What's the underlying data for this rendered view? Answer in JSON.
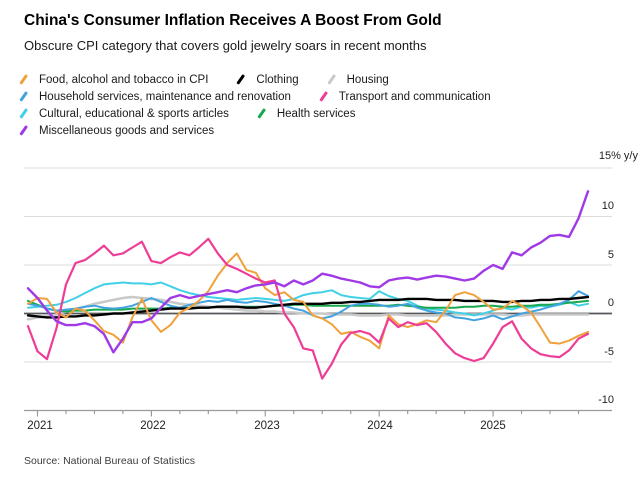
{
  "header": {
    "title": "China's Consumer Inflation Receives A Boost From Gold",
    "subtitle": "Obscure CPI category that covers gold jewelry soars in recent months"
  },
  "legend": {
    "items": [
      {
        "label": "Food, alcohol and tobacco in CPI",
        "color": "#F0A13C"
      },
      {
        "label": "Clothing",
        "color": "#000000"
      },
      {
        "label": "Housing",
        "color": "#C9C9C9"
      },
      {
        "label": "Household services, maintenance and renovation",
        "color": "#42A3E0"
      },
      {
        "label": "Transport and communication",
        "color": "#EE3D96"
      },
      {
        "label": "Cultural, educational & sports articles",
        "color": "#41D0E6"
      },
      {
        "label": "Health services",
        "color": "#18A84F"
      },
      {
        "label": "Miscellaneous goods and services",
        "color": "#A03AE6"
      }
    ]
  },
  "axis": {
    "y_top_label": "15% y/y",
    "y_ticks": [
      {
        "label": "10",
        "value": 10
      },
      {
        "label": "5",
        "value": 5
      },
      {
        "label": "0",
        "value": 0
      },
      {
        "label": "-5",
        "value": -5
      },
      {
        "label": "-10",
        "value": -10
      }
    ],
    "x_ticks": [
      {
        "label": "2021"
      },
      {
        "label": "2022"
      },
      {
        "label": "2023"
      },
      {
        "label": "2024"
      },
      {
        "label": "2025"
      }
    ]
  },
  "source": "Source: National Bureau of Statistics",
  "chart_data": {
    "type": "line",
    "frequency": "monthly",
    "x_start": "2020-12",
    "x_end": "2025-11",
    "n_points": 60,
    "ylabel": "% y/y",
    "ylim": [
      -10,
      15
    ],
    "grid": "horizontal",
    "legend_position": "top-left",
    "series": [
      {
        "name": "Food, alcohol and tobacco in CPI",
        "color": "#F0A13C",
        "values": [
          1.0,
          1.6,
          1.5,
          0.1,
          -0.4,
          0.5,
          0.3,
          -0.7,
          -1.8,
          -2.2,
          -3.0,
          -0.4,
          1.5,
          -0.7,
          -1.9,
          -1.2,
          0.1,
          0.6,
          1.3,
          2.3,
          3.9,
          5.2,
          6.2,
          4.5,
          4.2,
          2.6,
          1.9,
          2.2,
          1.4,
          1.2,
          -0.2,
          -0.5,
          -1.1,
          -2.1,
          -1.9,
          -2.4,
          -2.8,
          -3.6,
          -0.2,
          -1.1,
          -1.4,
          -1.1,
          -0.7,
          -0.9,
          0.3,
          1.9,
          2.2,
          1.9,
          1.2,
          0.4,
          0.5,
          1.3,
          0.8,
          0.1,
          -1.4,
          -3.0,
          -3.1,
          -2.8,
          -2.3,
          -1.9
        ]
      },
      {
        "name": "Clothing",
        "color": "#000000",
        "values": [
          -0.2,
          -0.3,
          -0.4,
          -0.4,
          -0.3,
          -0.3,
          -0.2,
          -0.2,
          -0.1,
          0.0,
          0.0,
          0.1,
          0.2,
          0.3,
          0.4,
          0.5,
          0.5,
          0.5,
          0.6,
          0.6,
          0.7,
          0.7,
          0.7,
          0.6,
          0.6,
          0.7,
          0.8,
          0.9,
          1.0,
          1.0,
          1.0,
          1.0,
          1.1,
          1.1,
          1.2,
          1.2,
          1.3,
          1.4,
          1.4,
          1.4,
          1.5,
          1.5,
          1.5,
          1.4,
          1.4,
          1.4,
          1.3,
          1.3,
          1.3,
          1.3,
          1.2,
          1.2,
          1.3,
          1.3,
          1.4,
          1.4,
          1.5,
          1.5,
          1.6,
          1.7
        ]
      },
      {
        "name": "Housing",
        "color": "#C9C9C9",
        "values": [
          -0.6,
          -0.4,
          -0.3,
          -0.1,
          0.2,
          0.4,
          0.7,
          1.0,
          1.2,
          1.4,
          1.6,
          1.7,
          1.6,
          1.5,
          1.4,
          1.2,
          1.0,
          0.9,
          0.8,
          0.7,
          0.6,
          0.5,
          0.4,
          0.3,
          0.3,
          0.2,
          0.2,
          0.1,
          0.1,
          0.0,
          0.0,
          0.0,
          -0.1,
          -0.1,
          -0.1,
          -0.2,
          -0.2,
          -0.2,
          -0.1,
          -0.1,
          -0.2,
          -0.2,
          -0.2,
          -0.2,
          -0.2,
          -0.1,
          -0.1,
          -0.1,
          -0.1,
          -0.1,
          -0.1,
          -0.2,
          -0.2,
          -0.1,
          -0.1,
          -0.1,
          -0.1,
          -0.1,
          -0.1,
          -0.1
        ]
      },
      {
        "name": "Household services, maintenance and renovation",
        "color": "#42A3E0",
        "values": [
          1.0,
          0.8,
          0.5,
          0.3,
          0.4,
          0.5,
          0.7,
          0.8,
          0.6,
          0.5,
          0.6,
          0.8,
          1.2,
          1.6,
          1.2,
          0.8,
          0.6,
          0.9,
          1.1,
          1.3,
          1.2,
          1.4,
          1.2,
          1.1,
          1.3,
          1.2,
          1.0,
          0.8,
          0.5,
          0.3,
          -0.2,
          -0.5,
          -0.3,
          0.2,
          0.8,
          1.0,
          1.0,
          0.9,
          0.7,
          0.8,
          1.0,
          0.6,
          0.3,
          0.1,
          0.0,
          -0.4,
          -0.5,
          -0.7,
          -0.5,
          -0.2,
          -0.6,
          -0.3,
          0.0,
          0.2,
          0.4,
          0.7,
          1.0,
          1.4,
          2.3,
          1.8
        ]
      },
      {
        "name": "Transport and communication",
        "color": "#EE3D96",
        "values": [
          -1.3,
          -3.9,
          -4.7,
          -1.5,
          3.0,
          5.2,
          5.5,
          6.2,
          7.0,
          6.0,
          6.2,
          6.8,
          7.4,
          5.4,
          5.2,
          5.8,
          6.3,
          6.0,
          6.8,
          7.7,
          6.2,
          5.0,
          4.6,
          4.1,
          3.6,
          3.2,
          3.4,
          0.0,
          -1.4,
          -3.6,
          -3.8,
          -6.7,
          -5.2,
          -3.2,
          -2.0,
          -1.8,
          -2.1,
          -3.0,
          -0.5,
          -1.4,
          -0.9,
          -1.2,
          -1.0,
          -1.9,
          -3.1,
          -4.1,
          -4.6,
          -4.9,
          -4.6,
          -3.1,
          -1.4,
          -0.8,
          -2.6,
          -3.6,
          -4.2,
          -4.4,
          -4.5,
          -3.8,
          -2.6,
          -2.1
        ]
      },
      {
        "name": "Cultural, educational & sports articles",
        "color": "#41D0E6",
        "values": [
          0.6,
          0.7,
          0.8,
          0.9,
          1.2,
          1.6,
          2.1,
          2.6,
          3.0,
          3.1,
          3.2,
          3.1,
          3.1,
          3.0,
          3.2,
          2.8,
          2.4,
          2.1,
          1.9,
          1.7,
          1.6,
          1.5,
          1.4,
          1.5,
          1.6,
          1.5,
          1.4,
          1.3,
          1.5,
          1.9,
          2.1,
          2.2,
          2.4,
          1.9,
          1.7,
          1.6,
          1.5,
          2.3,
          1.8,
          1.5,
          1.3,
          0.8,
          0.5,
          0.4,
          0.3,
          0.1,
          0.0,
          -0.2,
          0.0,
          0.3,
          0.6,
          0.4,
          0.7,
          0.6,
          0.8,
          0.7,
          0.9,
          1.2,
          0.8,
          1.0
        ]
      },
      {
        "name": "Health services",
        "color": "#18A84F",
        "values": [
          1.3,
          0.9,
          0.5,
          0.3,
          0.2,
          0.3,
          0.3,
          0.4,
          0.4,
          0.4,
          0.4,
          0.5,
          0.5,
          0.5,
          0.5,
          0.6,
          0.6,
          0.6,
          0.6,
          0.6,
          0.7,
          0.7,
          0.7,
          0.7,
          0.7,
          0.7,
          0.8,
          0.8,
          0.9,
          0.9,
          0.8,
          0.8,
          0.8,
          0.8,
          0.8,
          0.8,
          0.8,
          0.8,
          0.8,
          0.9,
          0.8,
          0.7,
          0.6,
          0.6,
          0.6,
          0.6,
          0.7,
          0.7,
          0.8,
          0.8,
          0.7,
          0.7,
          0.8,
          0.8,
          0.9,
          0.9,
          1.0,
          1.1,
          1.2,
          1.3
        ]
      },
      {
        "name": "Miscellaneous goods and services",
        "color": "#A03AE6",
        "values": [
          2.6,
          1.6,
          0.3,
          -0.8,
          -1.2,
          -1.2,
          -1.0,
          -1.3,
          -2.1,
          -4.0,
          -2.6,
          -0.9,
          -0.9,
          -0.5,
          0.6,
          1.6,
          1.9,
          1.6,
          1.8,
          2.0,
          2.2,
          2.4,
          2.2,
          2.6,
          2.9,
          3.0,
          3.2,
          2.8,
          3.4,
          3.0,
          3.4,
          4.1,
          3.9,
          3.6,
          3.4,
          3.2,
          2.8,
          2.7,
          3.4,
          3.6,
          3.7,
          3.5,
          3.7,
          3.9,
          3.8,
          3.6,
          3.4,
          3.6,
          4.4,
          5.0,
          4.6,
          6.3,
          6.0,
          6.8,
          7.3,
          8.0,
          8.1,
          7.9,
          9.8,
          12.6
        ]
      }
    ]
  }
}
